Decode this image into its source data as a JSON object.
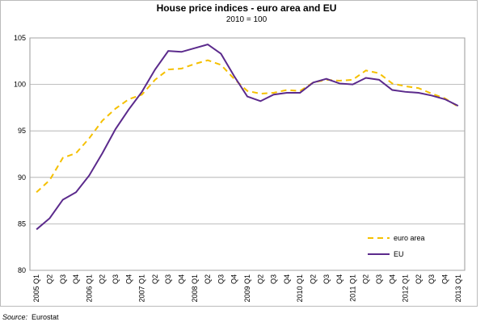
{
  "chart_data": {
    "type": "line",
    "title": "House price indices - euro area and EU",
    "subtitle": "2010 = 100",
    "categories": [
      "2005 Q1",
      "Q2",
      "Q3",
      "Q4",
      "2006 Q1",
      "Q2",
      "Q3",
      "Q4",
      "2007 Q1",
      "Q2",
      "Q3",
      "Q4",
      "2008 Q1",
      "Q2",
      "Q3",
      "Q4",
      "2009 Q1",
      "Q2",
      "Q3",
      "Q4",
      "2010 Q1",
      "Q2",
      "Q3",
      "Q4",
      "2011 Q1",
      "Q2",
      "Q3",
      "Q4",
      "2012 Q1",
      "Q2",
      "Q3",
      "Q4",
      "2013 Q1"
    ],
    "series": [
      {
        "name": "euro area",
        "color": "#f5c000",
        "dashed": true,
        "values": [
          88.4,
          89.7,
          92.1,
          92.6,
          94.2,
          96.1,
          97.4,
          98.4,
          98.9,
          100.5,
          101.6,
          101.7,
          102.2,
          102.6,
          102.1,
          100.6,
          99.3,
          99.0,
          99.1,
          99.4,
          99.3,
          100.2,
          100.5,
          100.4,
          100.5,
          101.5,
          101.2,
          100.1,
          99.8,
          99.6,
          99.0,
          98.5,
          97.6
        ]
      },
      {
        "name": "EU",
        "color": "#5b2a8c",
        "dashed": false,
        "values": [
          84.4,
          85.6,
          87.6,
          88.4,
          90.2,
          92.6,
          95.2,
          97.3,
          99.2,
          101.6,
          103.6,
          103.5,
          103.9,
          104.3,
          103.3,
          100.9,
          98.7,
          98.2,
          98.9,
          99.1,
          99.1,
          100.2,
          100.6,
          100.1,
          100.0,
          100.7,
          100.5,
          99.4,
          99.2,
          99.1,
          98.8,
          98.4,
          97.7
        ]
      }
    ],
    "ylim": [
      80,
      105
    ],
    "yticks": [
      80,
      85,
      90,
      95,
      100,
      105
    ],
    "grid": true,
    "legend": "lower right",
    "source_label": "Source:",
    "source": "Eurostat"
  }
}
